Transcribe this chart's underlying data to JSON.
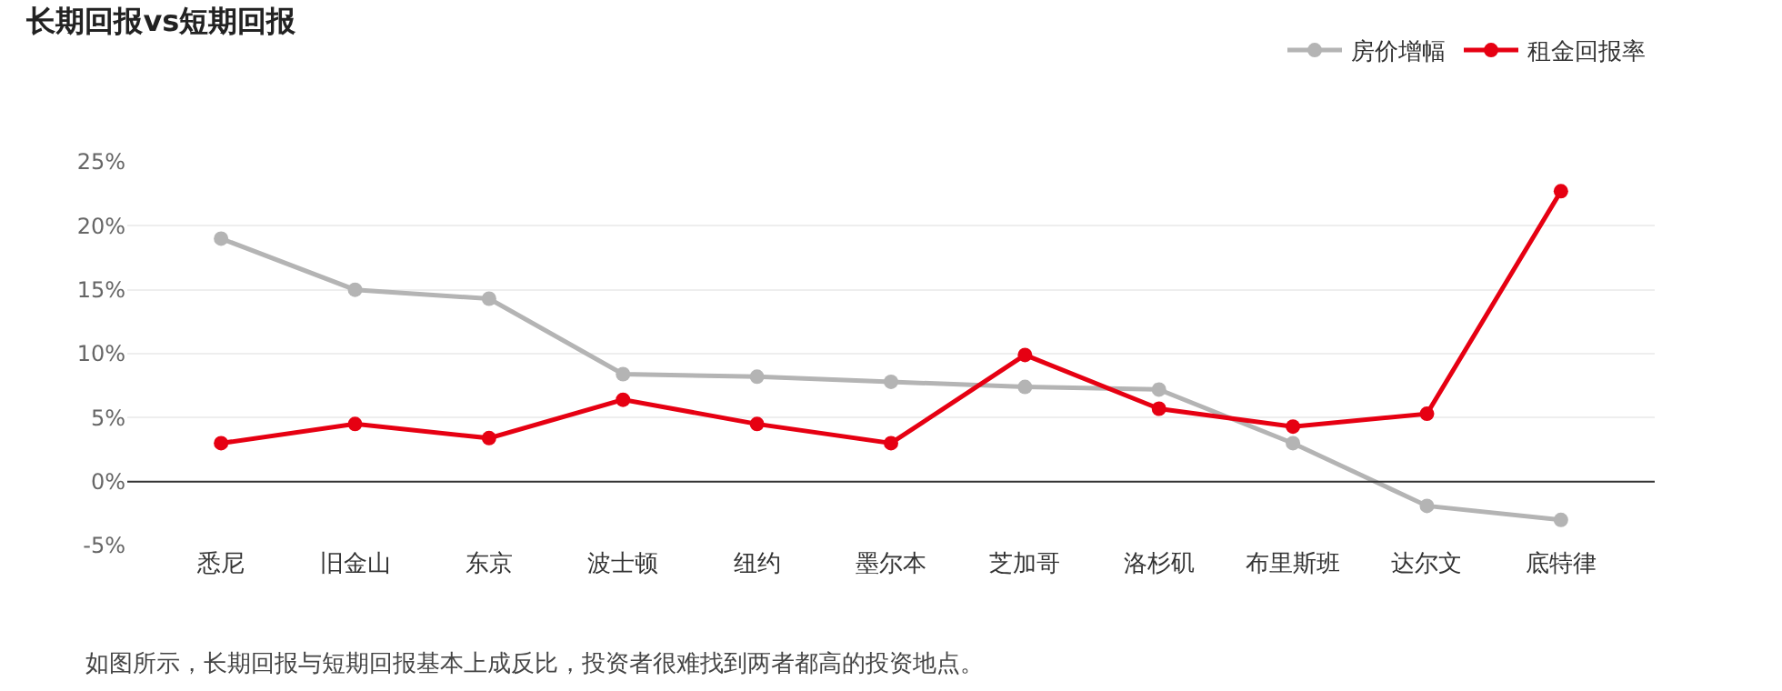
{
  "chart_data": {
    "type": "line",
    "title": "长期回报vs短期回报",
    "categories": [
      "悉尼",
      "旧金山",
      "东京",
      "波士顿",
      "纽约",
      "墨尔本",
      "芝加哥",
      "洛杉矶",
      "布里斯班",
      "达尔文",
      "底特律"
    ],
    "series": [
      {
        "name": "房价增幅",
        "color": "#b4b4b4",
        "values": [
          19.0,
          15.0,
          14.3,
          8.4,
          8.2,
          7.8,
          7.4,
          7.2,
          3.0,
          -1.9,
          -3.0
        ]
      },
      {
        "name": "租金回报率",
        "color": "#e60012",
        "values": [
          3.0,
          4.5,
          3.4,
          6.4,
          4.5,
          3.0,
          9.9,
          5.7,
          4.3,
          5.3,
          22.7
        ]
      }
    ],
    "ylim": [
      -5,
      25
    ],
    "yticks": [
      {
        "value": -5,
        "label": "-5%"
      },
      {
        "value": 0,
        "label": "0%"
      },
      {
        "value": 5,
        "label": "5%"
      },
      {
        "value": 10,
        "label": "10%"
      },
      {
        "value": 15,
        "label": "15%"
      },
      {
        "value": 20,
        "label": "20%"
      },
      {
        "value": 25,
        "label": "25%"
      }
    ],
    "ref_lines": [
      {
        "axis": "y",
        "value": 0,
        "color": "#333333"
      }
    ],
    "grid": "y",
    "legend": "top right",
    "marker": "circle",
    "line_style": "solid",
    "annotations": [
      "如图所示，长期回报与短期回报基本上成反比，投资者很难找到两者都高的投资地点。"
    ]
  }
}
